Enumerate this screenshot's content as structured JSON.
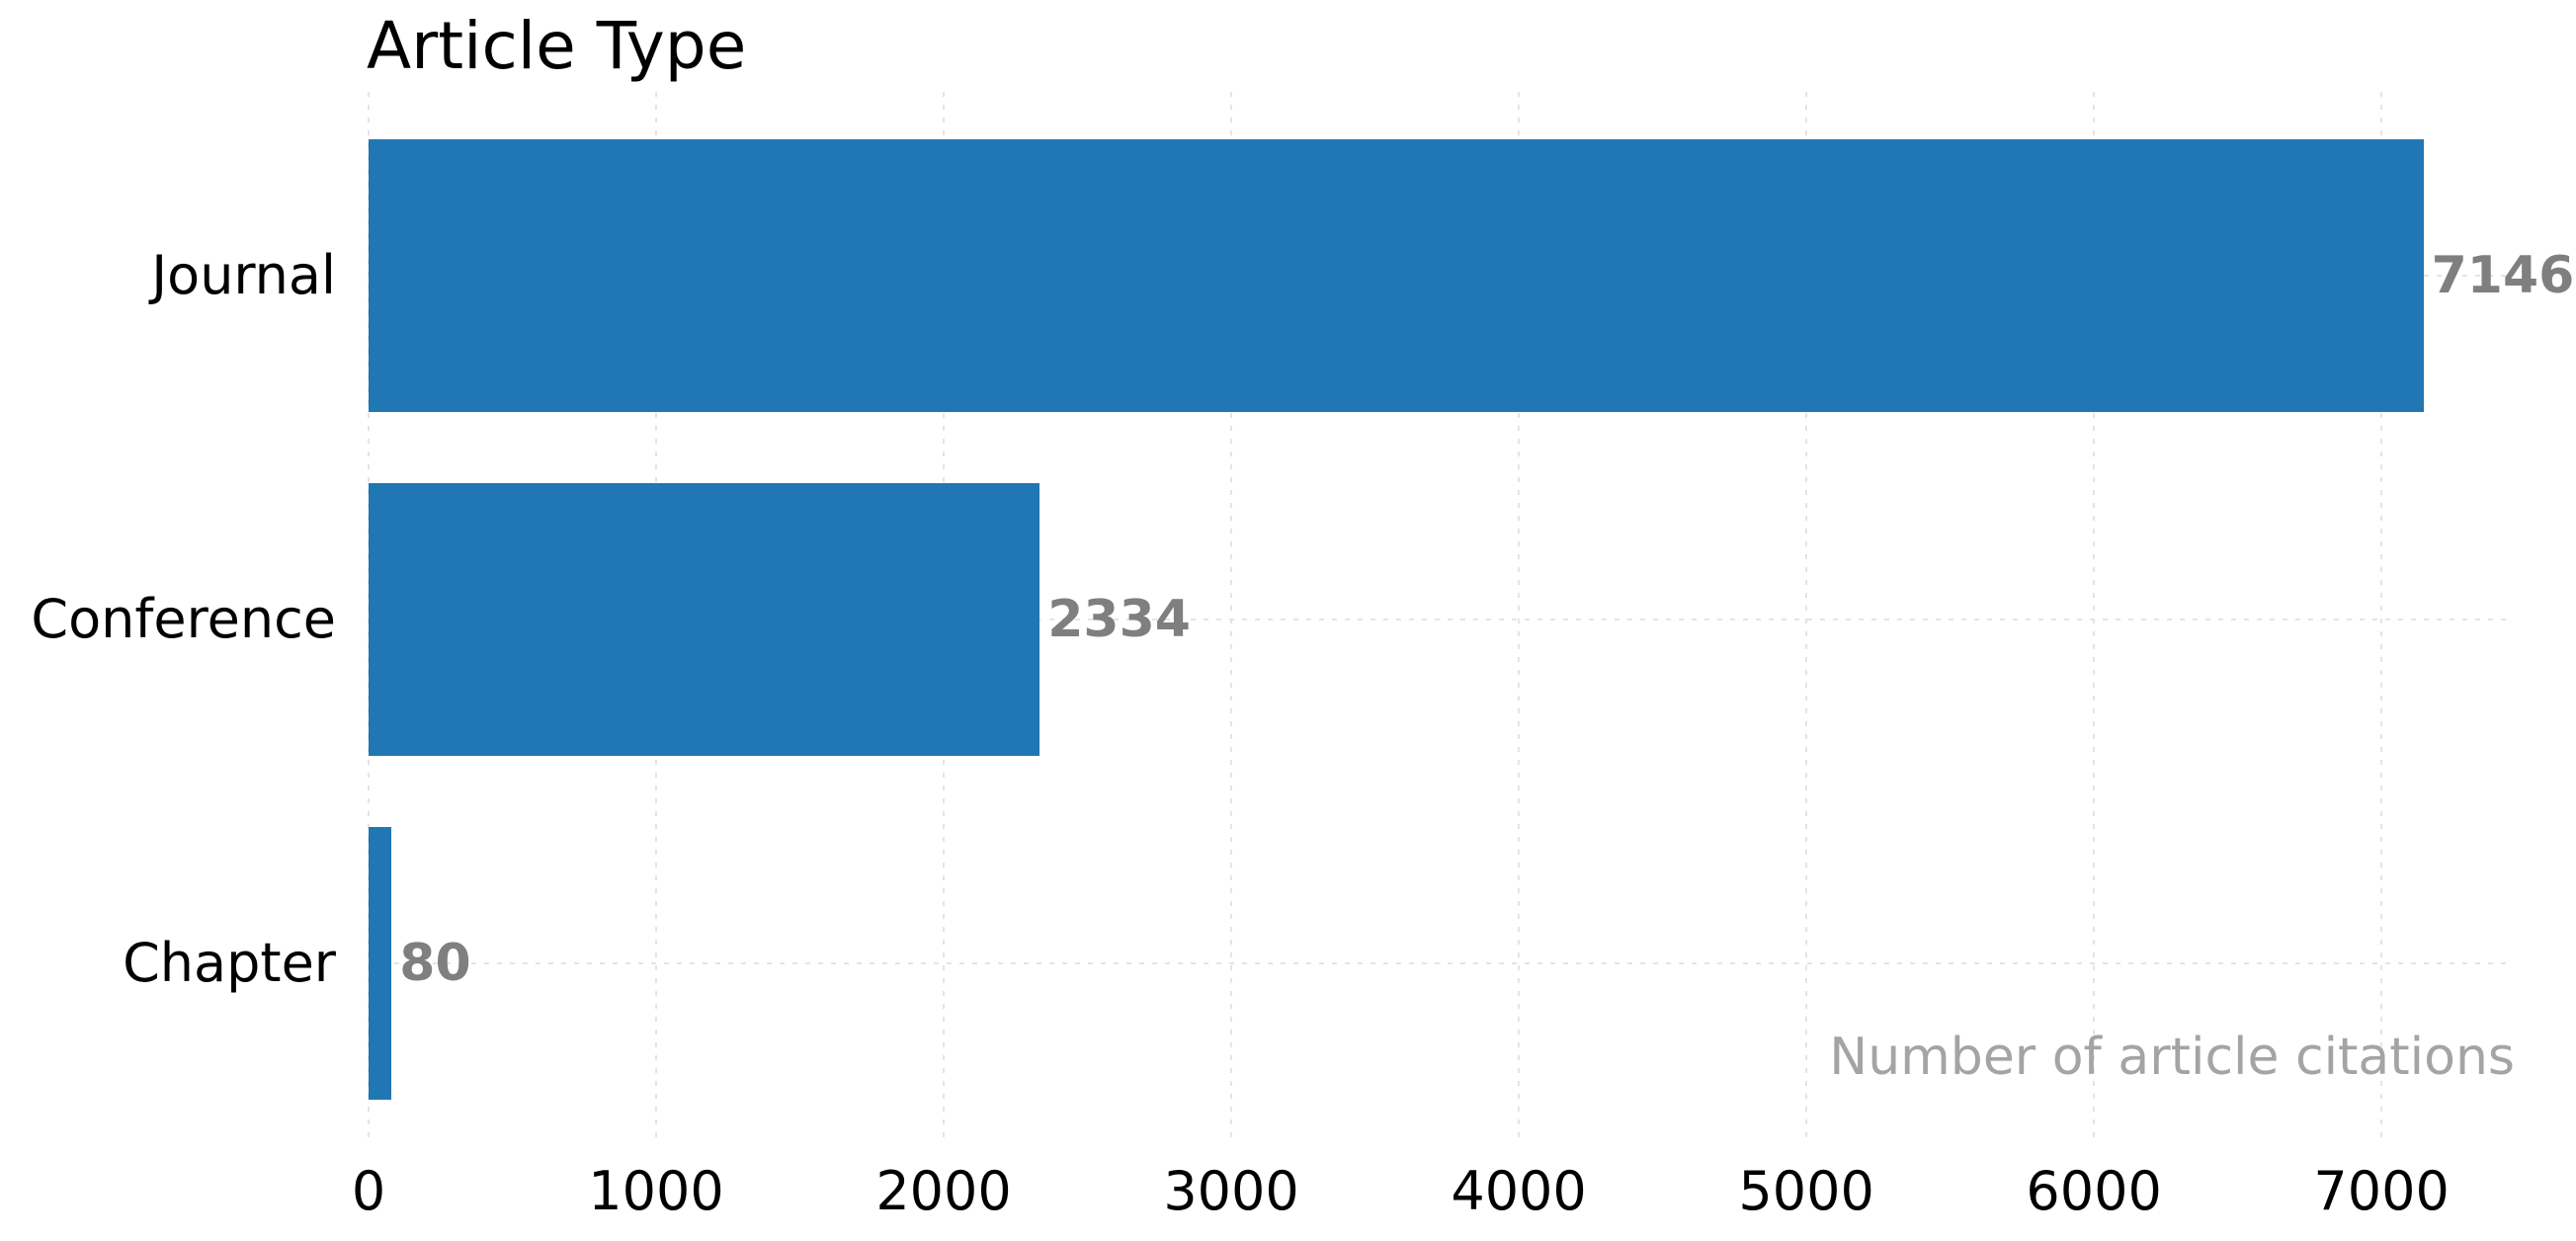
{
  "chart_data": {
    "type": "bar",
    "orientation": "horizontal",
    "title": "Article Type",
    "categories": [
      "Journal",
      "Conference",
      "Chapter"
    ],
    "values": [
      7146,
      2334,
      80
    ],
    "value_labels": [
      "7146",
      "2334",
      "80"
    ],
    "x_ticks": [
      0,
      1000,
      2000,
      3000,
      4000,
      5000,
      6000,
      7000
    ],
    "x_tick_labels": [
      "0",
      "1000",
      "2000",
      "3000",
      "4000",
      "5000",
      "6000",
      "7000"
    ],
    "xlim": [
      0,
      7460
    ],
    "xlabel": "",
    "ylabel": "",
    "annotation": "Number of article citations",
    "legend_position": "none",
    "grid": "dashed-both-axes",
    "colors": {
      "bar": "#2176b4",
      "value_label": "#7f7f7f",
      "annotation": "#a4a4a4",
      "grid": "#e4e4e4",
      "text": "#000000",
      "background": "#ffffff"
    }
  }
}
